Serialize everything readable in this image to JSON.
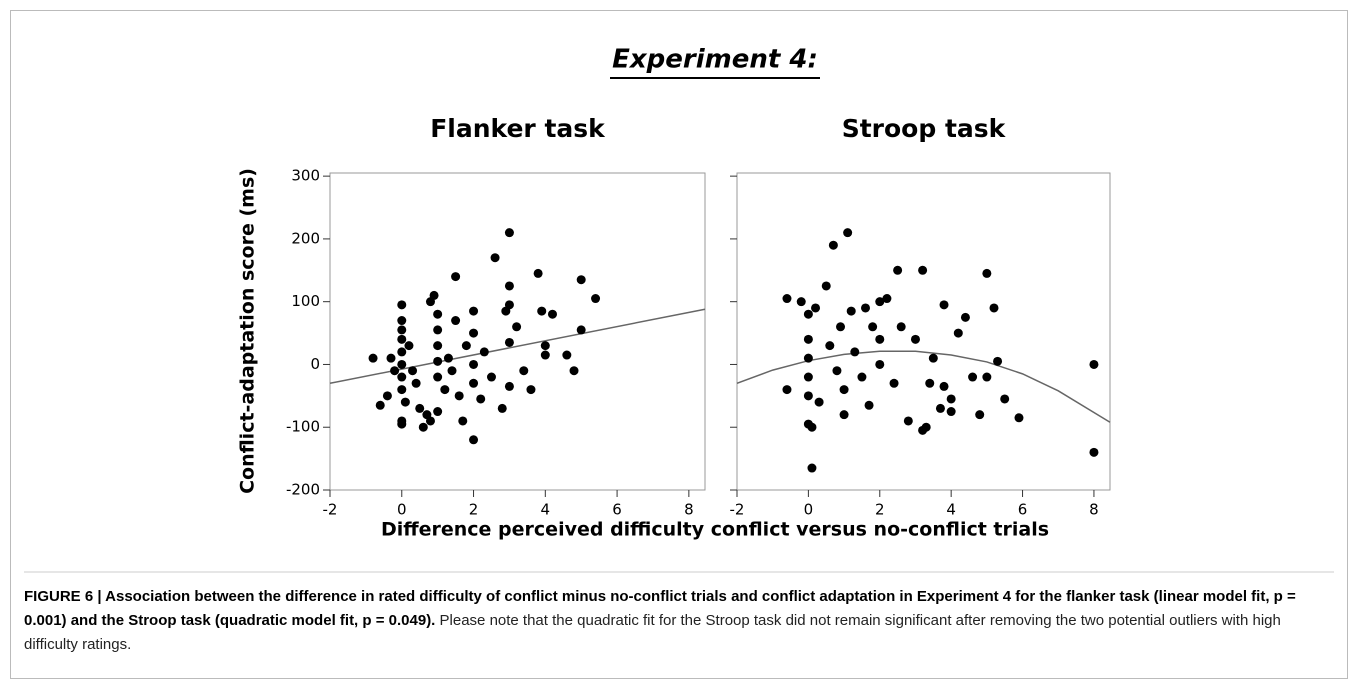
{
  "figure_title": "Experiment 4:",
  "x_label": "Difference perceived difficulty conflict versus no-conflict trials",
  "y_label": "Conflict-adaptation score (ms)",
  "caption": {
    "label": "FIGURE 6 | Association between the difference in rated difficulty of conflict minus no-conflict trials and conflict adaptation in Experiment 4 for the flanker task (linear model fit, p = 0.001) and the Stroop task (quadratic model fit, p = 0.049).",
    "text": "Please note that the quadratic fit for the Stroop task did not remain significant after removing the two potential outliers with high difficulty ratings."
  },
  "chart_data": [
    {
      "type": "scatter",
      "title": "Flanker task",
      "color": "#000000",
      "fit_color": "#666666",
      "xlim": [
        -2,
        8.45
      ],
      "ylim": [
        -200,
        305
      ],
      "xticks": [
        -2,
        0,
        2,
        4,
        6,
        8
      ],
      "yticks": [
        -200,
        -100,
        0,
        100,
        200,
        300
      ],
      "ytick_labels": true,
      "x": [
        -0.8,
        -0.6,
        -0.4,
        -0.3,
        -0.2,
        0,
        0,
        0,
        0,
        0,
        0,
        0,
        0,
        0,
        0,
        0.1,
        0.2,
        0.3,
        0.4,
        0.5,
        0.6,
        0.7,
        0.8,
        0.8,
        0.9,
        1,
        1,
        1,
        1,
        1,
        1,
        1.2,
        1.3,
        1.4,
        1.5,
        1.5,
        1.6,
        1.7,
        1.8,
        2,
        2,
        2,
        2,
        2,
        2.2,
        2.3,
        2.5,
        2.6,
        2.8,
        2.9,
        3,
        3,
        3,
        3,
        3,
        3.2,
        3.4,
        3.6,
        3.8,
        3.9,
        4,
        4,
        4.2,
        4.6,
        4.8,
        5,
        5,
        5.4
      ],
      "values": [
        10,
        -65,
        -50,
        10,
        -10,
        95,
        70,
        55,
        40,
        20,
        0,
        -20,
        -40,
        -90,
        -95,
        -60,
        30,
        -10,
        -30,
        -70,
        -100,
        -80,
        -90,
        100,
        110,
        80,
        55,
        30,
        5,
        -20,
        -75,
        -40,
        10,
        -10,
        140,
        70,
        -50,
        -90,
        30,
        85,
        50,
        0,
        -30,
        -120,
        -55,
        20,
        -20,
        170,
        -70,
        85,
        210,
        125,
        95,
        35,
        -35,
        60,
        -10,
        -40,
        145,
        85,
        30,
        15,
        80,
        15,
        -10,
        135,
        55,
        105
      ],
      "fit": {
        "x": [
          -2,
          8.45
        ],
        "values": [
          -30,
          88
        ]
      }
    },
    {
      "type": "scatter",
      "title": "Stroop task",
      "color": "#000000",
      "fit_color": "#666666",
      "xlim": [
        -2,
        8.45
      ],
      "ylim": [
        -200,
        305
      ],
      "xticks": [
        -2,
        0,
        2,
        4,
        6,
        8
      ],
      "yticks": [
        -200,
        -100,
        0,
        100,
        200,
        300
      ],
      "ytick_labels": false,
      "x": [
        -0.6,
        -0.6,
        -0.2,
        0,
        0,
        0,
        0,
        0,
        0,
        0.1,
        0.1,
        0.2,
        0.3,
        0.5,
        0.6,
        0.7,
        0.8,
        0.9,
        1,
        1,
        1.1,
        1.2,
        1.3,
        1.5,
        1.6,
        1.7,
        1.8,
        2,
        2,
        2,
        2.2,
        2.4,
        2.5,
        2.6,
        2.8,
        3,
        3.2,
        3.2,
        3.3,
        3.4,
        3.5,
        3.7,
        3.8,
        3.8,
        4,
        4,
        4.2,
        4.4,
        4.6,
        4.8,
        5,
        5,
        5.2,
        5.3,
        5.5,
        5.9,
        8,
        8
      ],
      "values": [
        105,
        -40,
        100,
        80,
        40,
        10,
        -20,
        -50,
        -95,
        -100,
        -165,
        90,
        -60,
        125,
        30,
        190,
        -10,
        60,
        -40,
        -80,
        210,
        85,
        20,
        -20,
        90,
        -65,
        60,
        100,
        40,
        0,
        105,
        -30,
        150,
        60,
        -90,
        40,
        150,
        -105,
        -100,
        -30,
        10,
        -70,
        95,
        -35,
        -55,
        -75,
        50,
        75,
        -20,
        -80,
        145,
        -20,
        90,
        5,
        -55,
        -85,
        0,
        -140
      ],
      "fit": {
        "x": [
          -2,
          -1,
          0,
          1,
          2,
          3,
          4,
          5,
          6,
          7,
          8.45
        ],
        "values": [
          -30,
          -9,
          6,
          16,
          21,
          21,
          15,
          4,
          -15,
          -42,
          -92
        ]
      }
    }
  ]
}
